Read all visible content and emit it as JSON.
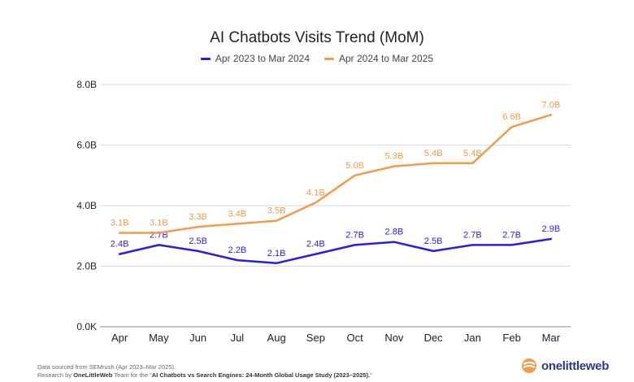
{
  "chart_data": {
    "type": "line",
    "title": "AI Chatbots Visits Trend (MoM)",
    "categories": [
      "Apr",
      "May",
      "Jun",
      "Jul",
      "Aug",
      "Sep",
      "Oct",
      "Nov",
      "Dec",
      "Jan",
      "Feb",
      "Mar"
    ],
    "y_ticks": [
      "0.0K",
      "2.0B",
      "4.0B",
      "6.0B",
      "8.0B"
    ],
    "ylim": [
      0,
      8
    ],
    "grid": true,
    "legend": "top-center",
    "series": [
      {
        "name": "Apr 2023 to Mar 2024",
        "color": "#2a1de0",
        "values": [
          2.4,
          2.7,
          2.5,
          2.2,
          2.1,
          2.4,
          2.7,
          2.8,
          2.5,
          2.7,
          2.7,
          2.9
        ],
        "labels": [
          "2.4B",
          "2.7B",
          "2.5B",
          "2.2B",
          "2.1B",
          "2.4B",
          "2.7B",
          "2.8B",
          "2.5B",
          "2.7B",
          "2.7B",
          "2.9B"
        ]
      },
      {
        "name": "Apr 2024 to Mar 2025",
        "color": "#f39a4c",
        "values": [
          3.1,
          3.1,
          3.3,
          3.4,
          3.5,
          4.1,
          5.0,
          5.3,
          5.4,
          5.4,
          6.6,
          7.0
        ],
        "labels": [
          "3.1B",
          "3.1B",
          "3.3B",
          "3.4B",
          "3.5B",
          "4.1B",
          "5.0B",
          "5.3B",
          "5.4B",
          "5.4B",
          "6.6B",
          "7.0B"
        ]
      }
    ]
  },
  "footer": {
    "source": "Data sourced from SEMrush (Apr 2023–Mar 2025).",
    "research_prefix": "Research by ",
    "research_org": "OneLittleWeb",
    "research_middle": " Team for the \"",
    "research_study": "AI Chatbots vs Search Engines: 24-Month Global Usage Study (2023–2025).",
    "research_suffix": "\""
  },
  "logo": {
    "text": "onelittleweb",
    "icon": "onelittleweb-logo-icon",
    "color": "#2a3a8f",
    "accent": "#f39a4c"
  }
}
